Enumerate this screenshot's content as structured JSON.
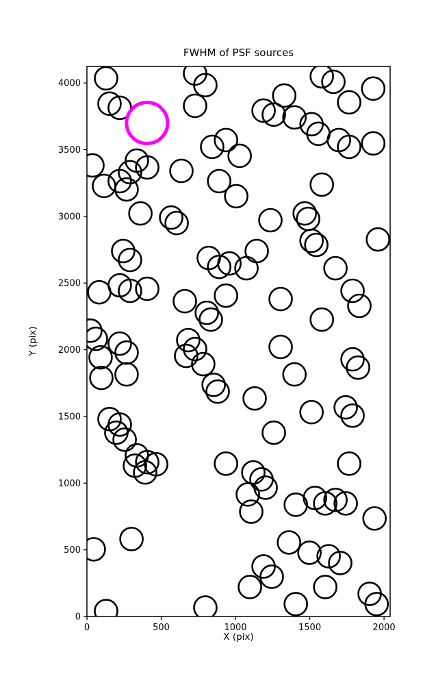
{
  "title": "FWHM of PSF sources",
  "chart_data": {
    "type": "scatter",
    "title": "FWHM of PSF sources",
    "xlabel": "X (pix)",
    "ylabel": "Y (pix)",
    "xlim": [
      0,
      2041
    ],
    "ylim": [
      0,
      4124
    ],
    "xticks": [
      0,
      500,
      1000,
      1500,
      2000
    ],
    "yticks": [
      0,
      500,
      1000,
      1500,
      2000,
      2500,
      3000,
      3500,
      4000
    ],
    "grid": false,
    "legend": "none",
    "marker": {
      "shape": "open-circle",
      "fill": "none",
      "edge_color": "#000000",
      "radius_px": 16.5,
      "stroke_px": 2.6
    },
    "highlight": {
      "x": 405,
      "y": 3700,
      "color": "#ff00ff",
      "radius_px": 30,
      "stroke_px": 5
    },
    "points": [
      [
        129,
        4035
      ],
      [
        728,
        4071
      ],
      [
        797,
        3984
      ],
      [
        1581,
        4050
      ],
      [
        1659,
        4009
      ],
      [
        1927,
        3958
      ],
      [
        152,
        3845
      ],
      [
        221,
        3814
      ],
      [
        728,
        3829
      ],
      [
        1328,
        3906
      ],
      [
        1189,
        3793
      ],
      [
        1258,
        3763
      ],
      [
        1397,
        3742
      ],
      [
        1512,
        3691
      ],
      [
        1558,
        3619
      ],
      [
        1765,
        3855
      ],
      [
        1927,
        3547
      ],
      [
        1696,
        3572
      ],
      [
        1765,
        3521
      ],
      [
        843,
        3521
      ],
      [
        936,
        3572
      ],
      [
        1028,
        3454
      ],
      [
        37,
        3382
      ],
      [
        336,
        3418
      ],
      [
        406,
        3367
      ],
      [
        290,
        3331
      ],
      [
        636,
        3341
      ],
      [
        221,
        3264
      ],
      [
        267,
        3202
      ],
      [
        115,
        3228
      ],
      [
        890,
        3264
      ],
      [
        1005,
        3151
      ],
      [
        1581,
        3238
      ],
      [
        360,
        3022
      ],
      [
        567,
        2991
      ],
      [
        604,
        2950
      ],
      [
        1235,
        2971
      ],
      [
        1466,
        3022
      ],
      [
        1489,
        2981
      ],
      [
        1512,
        2817
      ],
      [
        1544,
        2786
      ],
      [
        1673,
        2611
      ],
      [
        1959,
        2827
      ],
      [
        820,
        2688
      ],
      [
        890,
        2621
      ],
      [
        959,
        2647
      ],
      [
        1074,
        2611
      ],
      [
        1143,
        2740
      ],
      [
        244,
        2740
      ],
      [
        290,
        2673
      ],
      [
        83,
        2431
      ],
      [
        221,
        2483
      ],
      [
        290,
        2442
      ],
      [
        406,
        2457
      ],
      [
        659,
        2364
      ],
      [
        936,
        2406
      ],
      [
        807,
        2277
      ],
      [
        834,
        2226
      ],
      [
        1304,
        2380
      ],
      [
        1788,
        2442
      ],
      [
        1834,
        2329
      ],
      [
        1581,
        2226
      ],
      [
        23,
        2143
      ],
      [
        60,
        2082
      ],
      [
        221,
        2046
      ],
      [
        267,
        1979
      ],
      [
        92,
        1943
      ],
      [
        682,
        2072
      ],
      [
        728,
        2005
      ],
      [
        668,
        1954
      ],
      [
        783,
        1892
      ],
      [
        1304,
        2021
      ],
      [
        1397,
        1815
      ],
      [
        1788,
        1928
      ],
      [
        1825,
        1866
      ],
      [
        97,
        1789
      ],
      [
        267,
        1815
      ],
      [
        853,
        1737
      ],
      [
        880,
        1686
      ],
      [
        1129,
        1635
      ],
      [
        1258,
        1378
      ],
      [
        1512,
        1532
      ],
      [
        1742,
        1568
      ],
      [
        1788,
        1506
      ],
      [
        152,
        1480
      ],
      [
        221,
        1439
      ],
      [
        198,
        1378
      ],
      [
        254,
        1326
      ],
      [
        336,
        1208
      ],
      [
        406,
        1157
      ],
      [
        323,
        1131
      ],
      [
        392,
        1080
      ],
      [
        466,
        1141
      ],
      [
        936,
        1146
      ],
      [
        1120,
        1080
      ],
      [
        1175,
        1028
      ],
      [
        1203,
        966
      ],
      [
        1083,
        915
      ],
      [
        1765,
        1146
      ],
      [
        1106,
        786
      ],
      [
        1406,
        838
      ],
      [
        1535,
        889
      ],
      [
        1604,
        848
      ],
      [
        1673,
        874
      ],
      [
        1742,
        848
      ],
      [
        1936,
        735
      ],
      [
        46,
        504
      ],
      [
        300,
        581
      ],
      [
        1360,
        555
      ],
      [
        1498,
        478
      ],
      [
        1627,
        452
      ],
      [
        1705,
        401
      ],
      [
        1189,
        375
      ],
      [
        1244,
        298
      ],
      [
        1097,
        221
      ],
      [
        797,
        67
      ],
      [
        129,
        41
      ],
      [
        1604,
        221
      ],
      [
        1903,
        170
      ],
      [
        1950,
        93
      ],
      [
        1406,
        93
      ]
    ]
  }
}
